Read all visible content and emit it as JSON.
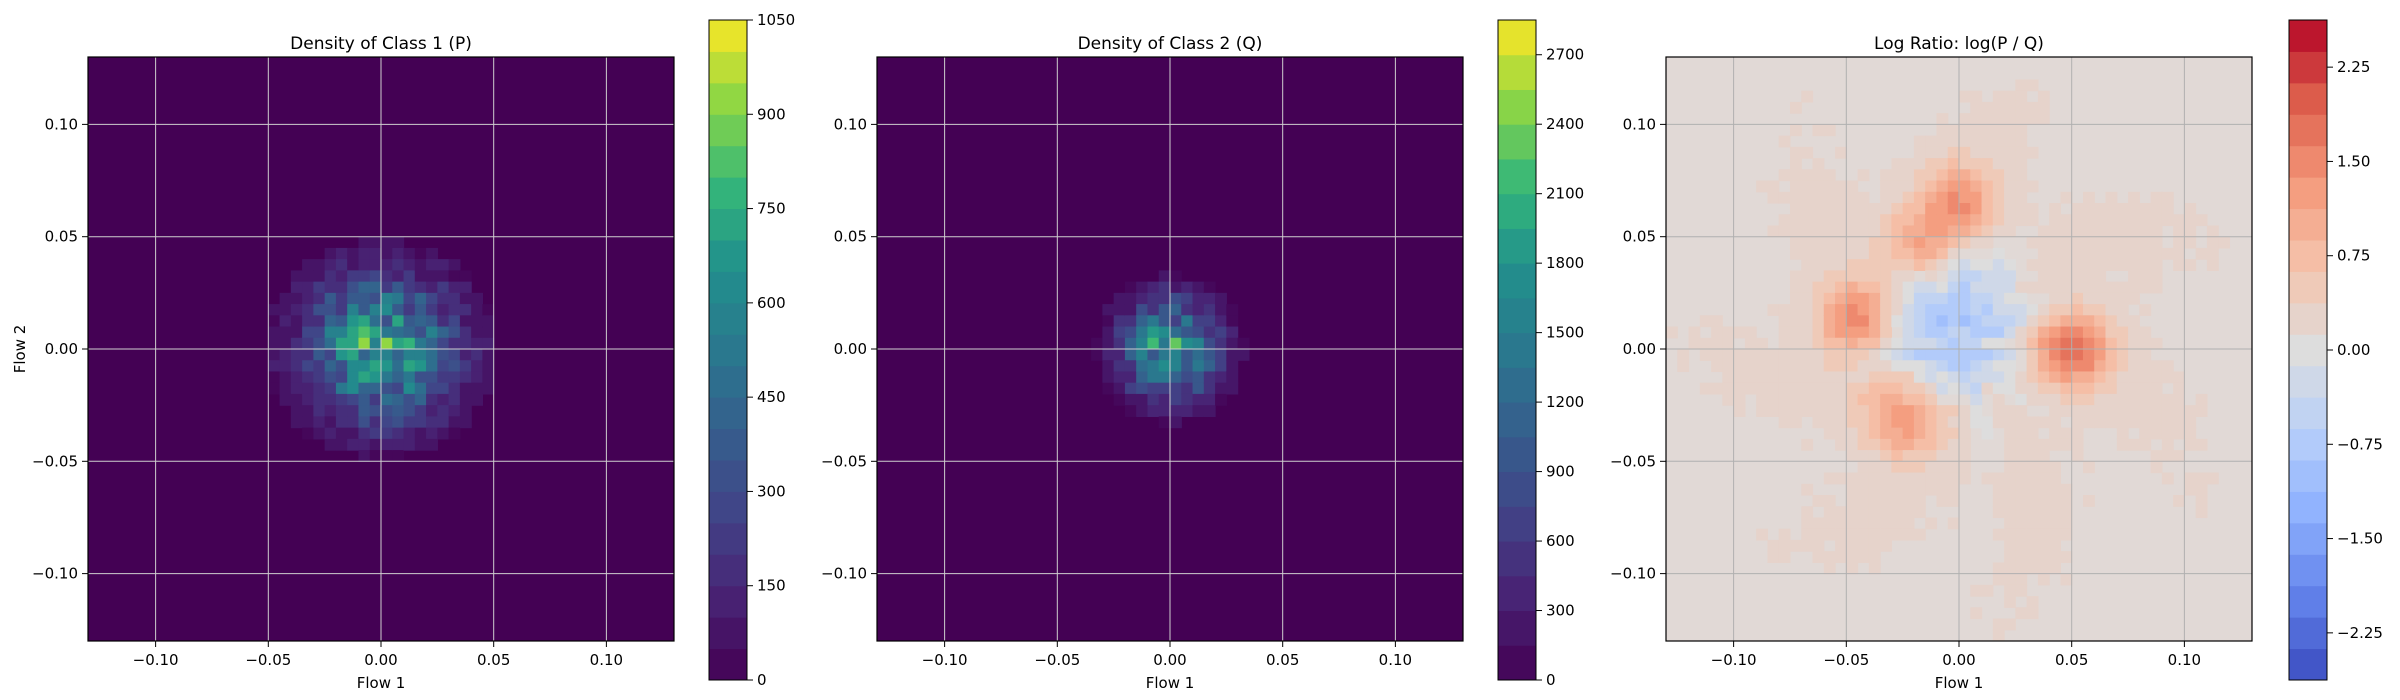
{
  "chart_data": [
    {
      "type": "heatmap",
      "title": "Density of Class 1 (P)",
      "xlabel": "Flow 1",
      "ylabel": "Flow 2",
      "xlim": [
        -0.13,
        0.13
      ],
      "ylim": [
        -0.13,
        0.13
      ],
      "xticks": [
        -0.1,
        -0.05,
        0.0,
        0.05,
        0.1
      ],
      "xtick_labels": [
        "−0.10",
        "−0.05",
        "0.00",
        "0.05",
        "0.10"
      ],
      "yticks": [
        -0.1,
        -0.05,
        0.0,
        0.05,
        0.1
      ],
      "ytick_labels": [
        "−0.10",
        "−0.05",
        "0.00",
        "0.05",
        "0.10"
      ],
      "grid": true,
      "colormap": "viridis",
      "colorbar": {
        "range": [
          0,
          1050
        ],
        "levels": 21,
        "ticks": [
          0,
          150,
          300,
          450,
          600,
          750,
          900,
          1050
        ],
        "tick_labels": [
          "0",
          "150",
          "300",
          "450",
          "600",
          "750",
          "900",
          "1050"
        ]
      },
      "background_color": "#440154",
      "density_region": {
        "center": [
          0.0,
          0.0
        ],
        "extent_x": [
          -0.05,
          0.05
        ],
        "extent_y": [
          -0.05,
          0.045
        ],
        "peak": 700
      }
    },
    {
      "type": "heatmap",
      "title": "Density of Class 2 (Q)",
      "xlabel": "Flow 1",
      "ylabel": "",
      "xlim": [
        -0.13,
        0.13
      ],
      "ylim": [
        -0.13,
        0.13
      ],
      "xticks": [
        -0.1,
        -0.05,
        0.0,
        0.05,
        0.1
      ],
      "xtick_labels": [
        "−0.10",
        "−0.05",
        "0.00",
        "0.05",
        "0.10"
      ],
      "yticks": [
        -0.1,
        -0.05,
        0.0,
        0.05,
        0.1
      ],
      "ytick_labels": [
        "−0.10",
        "−0.05",
        "0.00",
        "0.05",
        "0.10"
      ],
      "grid": true,
      "colormap": "viridis",
      "colorbar": {
        "range": [
          0,
          2850
        ],
        "levels": 19,
        "ticks": [
          0,
          300,
          600,
          900,
          1200,
          1500,
          1800,
          2100,
          2400,
          2700
        ],
        "tick_labels": [
          "0",
          "300",
          "600",
          "900",
          "1200",
          "1500",
          "1800",
          "2100",
          "2400",
          "2700"
        ]
      },
      "background_color": "#440154",
      "density_region": {
        "center": [
          0.0,
          0.0
        ],
        "extent_x": [
          -0.035,
          0.03
        ],
        "extent_y": [
          -0.03,
          0.035
        ],
        "peak": 1800
      }
    },
    {
      "type": "heatmap",
      "title": "Log Ratio: log(P / Q)",
      "xlabel": "Flow 1",
      "ylabel": "",
      "xlim": [
        -0.13,
        0.13
      ],
      "ylim": [
        -0.13,
        0.13
      ],
      "xticks": [
        -0.1,
        -0.05,
        0.0,
        0.05,
        0.1
      ],
      "xtick_labels": [
        "−0.10",
        "−0.05",
        "0.00",
        "0.05",
        "0.10"
      ],
      "yticks": [
        -0.1,
        -0.05,
        0.0,
        0.05,
        0.1
      ],
      "ytick_labels": [
        "−0.10",
        "−0.05",
        "0.00",
        "0.05",
        "0.10"
      ],
      "grid": true,
      "colormap": "coolwarm",
      "colorbar": {
        "range": [
          -2.625,
          2.625
        ],
        "levels": 21,
        "ticks": [
          -2.25,
          -1.5,
          -0.75,
          0.0,
          0.75,
          1.5,
          2.25
        ],
        "tick_labels": [
          "−2.25",
          "−1.50",
          "−0.75",
          "0.00",
          "0.75",
          "1.50",
          "2.25"
        ]
      },
      "background_value": 0.1,
      "hotspots": [
        {
          "x": 0.05,
          "y": 0.0,
          "value": 2.2
        },
        {
          "x": -0.045,
          "y": 0.013,
          "value": 2.0
        },
        {
          "x": -0.025,
          "y": -0.03,
          "value": 1.7
        },
        {
          "x": 0.0,
          "y": 0.065,
          "value": 1.6
        },
        {
          "x": -0.02,
          "y": 0.045,
          "value": 1.3
        }
      ],
      "coldspots": [
        {
          "x": -0.005,
          "y": 0.01,
          "value": -1.2
        }
      ]
    }
  ]
}
